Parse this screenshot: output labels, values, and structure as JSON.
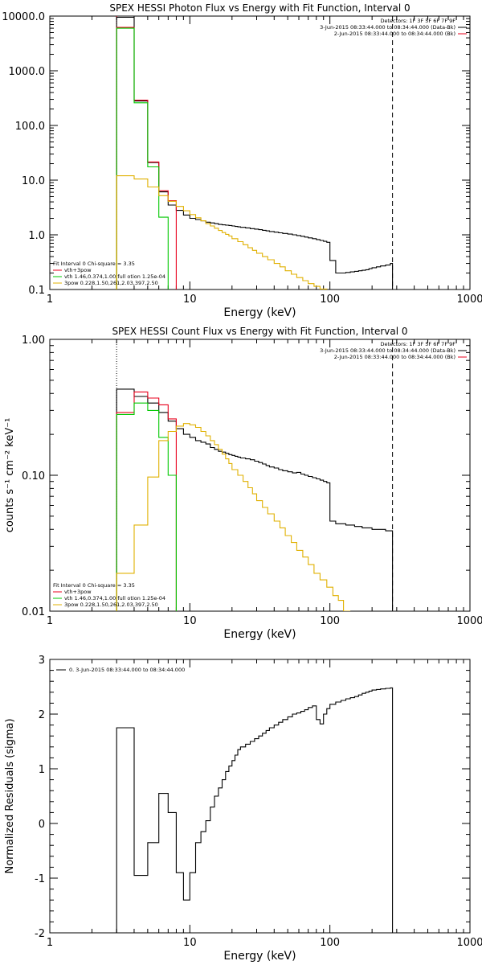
{
  "chart_data": [
    {
      "id": "photon",
      "type": "line",
      "title": "SPEX HESSI Photon Flux vs Energy with Fit Function, Interval 0",
      "xlabel": "Energy (keV)",
      "ylabel": "",
      "xscale": "log",
      "yscale": "log",
      "xlim": [
        1,
        1000
      ],
      "ylim": [
        0.1,
        10000
      ],
      "xticks": [
        1,
        10,
        100,
        1000
      ],
      "xtick_labels": [
        "1",
        "10",
        "100",
        "1000"
      ],
      "yticks": [
        0.1,
        1,
        10,
        100,
        1000,
        10000
      ],
      "ytick_labels": [
        "0.1",
        "1.0",
        "10.0",
        "100.0",
        "1000.0",
        "10000.0"
      ],
      "legend_tr": [
        {
          "text": "Detectors: 1F 3F 5F 6F 7F 9F",
          "color": ""
        },
        {
          "text": "3-Jun-2015 08:33:44.000 to 08:34:44.000 (Data-Bk)",
          "color": "#000000"
        },
        {
          "text": "2-Jun-2015 08:33:44.000 to 08:34:44.000 (Bk)",
          "color": "#e8001c"
        }
      ],
      "legend_bl": [
        {
          "text": "Fit Interval 0   Chi-square = 3.35",
          "color": ""
        },
        {
          "text": "vth+3pow",
          "color": "#e8001c"
        },
        {
          "text": "vth 1.46,0.374,1.00  full otion 1.25e-04",
          "color": "#00c800"
        },
        {
          "text": "3pow 0.228,1.50,261,2.03,397,2.50",
          "color": "#e0b000"
        }
      ],
      "vlines": [
        {
          "x": 3.0,
          "style": "dotted",
          "color": "#e8001c"
        },
        {
          "x": 280,
          "style": "dashed",
          "color": "#000000"
        }
      ],
      "series": [
        {
          "color": "#000000",
          "edges": [
            3,
            4,
            5,
            6,
            7,
            8,
            9,
            10,
            11,
            12,
            13,
            14,
            15,
            16,
            17,
            18,
            19,
            20,
            21,
            22,
            23,
            25,
            27,
            29,
            31,
            33,
            35,
            37,
            40,
            43,
            46,
            50,
            54,
            58,
            62,
            66,
            70,
            75,
            80,
            85,
            90,
            95,
            100,
            110,
            120,
            130,
            140,
            150,
            160,
            170,
            180,
            190,
            200,
            215,
            230,
            250,
            270,
            280
          ],
          "values": [
            9500,
            280,
            21,
            6.1,
            3.5,
            2.8,
            2.3,
            2.0,
            1.9,
            1.8,
            1.7,
            1.65,
            1.6,
            1.55,
            1.52,
            1.5,
            1.48,
            1.45,
            1.42,
            1.4,
            1.37,
            1.34,
            1.3,
            1.27,
            1.24,
            1.21,
            1.18,
            1.15,
            1.12,
            1.09,
            1.06,
            1.03,
            1.0,
            0.97,
            0.94,
            0.91,
            0.88,
            0.85,
            0.82,
            0.79,
            0.76,
            0.73,
            0.34,
            0.2,
            0.2,
            0.205,
            0.21,
            0.215,
            0.22,
            0.225,
            0.23,
            0.24,
            0.25,
            0.26,
            0.27,
            0.28,
            0.3
          ]
        },
        {
          "color": "#e8001c",
          "edges": [
            3,
            4,
            5,
            6,
            7,
            8
          ],
          "values": [
            6200,
            290,
            21.5,
            6.4,
            4.2
          ]
        },
        {
          "color": "#00c800",
          "edges": [
            3,
            4,
            5,
            6,
            7
          ],
          "values": [
            6000,
            260,
            17.5,
            2.1
          ]
        },
        {
          "color": "#e0b000",
          "edges": [
            3,
            4,
            5,
            6,
            7,
            8,
            9,
            10,
            11,
            12,
            13,
            14,
            15,
            16,
            17,
            18,
            19,
            20,
            22,
            24,
            26,
            28,
            30,
            33,
            36,
            40,
            44,
            48,
            53,
            58,
            64,
            70,
            77,
            85,
            95,
            100
          ],
          "values": [
            12,
            10.5,
            7.5,
            5.2,
            4.1,
            3.3,
            2.75,
            2.35,
            2.05,
            1.8,
            1.6,
            1.45,
            1.32,
            1.2,
            1.1,
            1.02,
            0.95,
            0.85,
            0.75,
            0.66,
            0.58,
            0.52,
            0.46,
            0.4,
            0.35,
            0.3,
            0.26,
            0.22,
            0.19,
            0.165,
            0.145,
            0.128,
            0.114,
            0.102,
            0.09
          ]
        }
      ]
    },
    {
      "id": "count",
      "type": "line",
      "title": "SPEX HESSI Count Flux vs Energy with Fit Function, Interval 0",
      "xlabel": "Energy (keV)",
      "ylabel": "counts s⁻¹ cm⁻² keV⁻¹",
      "xscale": "log",
      "yscale": "log",
      "xlim": [
        1,
        1000
      ],
      "ylim": [
        0.01,
        1
      ],
      "xticks": [
        1,
        10,
        100,
        1000
      ],
      "xtick_labels": [
        "1",
        "10",
        "100",
        "1000"
      ],
      "yticks": [
        0.01,
        0.1,
        1
      ],
      "ytick_labels": [
        "0.01",
        "0.10",
        "1.00"
      ],
      "legend_tr": [
        {
          "text": "Detectors: 1F 3F 5F 6F 7F 9F",
          "color": ""
        },
        {
          "text": "3-Jun-2015 08:33:44.000 to 08:34:44.000 (Data-Bk)",
          "color": "#000000"
        },
        {
          "text": "2-Jun-2015 08:33:44.000 to 08:34:44.000 (Bk)",
          "color": "#e8001c"
        }
      ],
      "legend_bl": [
        {
          "text": "Fit Interval 0   Chi-square = 3.35",
          "color": ""
        },
        {
          "text": "vth+3pow",
          "color": "#e8001c"
        },
        {
          "text": "vth 1.46,0.374,1.00  full otion 1.25e-04",
          "color": "#00c800"
        },
        {
          "text": "3pow 0.228,1.50,261,2.03,397,2.50",
          "color": "#e0b000"
        }
      ],
      "vlines": [
        {
          "x": 3.0,
          "style": "dotted",
          "color": "#000000"
        },
        {
          "x": 280,
          "style": "dashed",
          "color": "#000000"
        }
      ],
      "series": [
        {
          "color": "#000000",
          "edges": [
            3,
            4,
            5,
            6,
            7,
            8,
            9,
            10,
            11,
            12,
            13,
            14,
            15,
            16,
            17,
            18,
            19,
            20,
            21,
            22,
            23,
            25,
            27,
            29,
            31,
            33,
            35,
            37,
            40,
            43,
            46,
            50,
            54,
            58,
            62,
            66,
            70,
            75,
            80,
            85,
            90,
            95,
            100,
            110,
            120,
            130,
            140,
            150,
            160,
            170,
            180,
            190,
            200,
            215,
            230,
            250,
            270,
            280
          ],
          "values": [
            0.43,
            0.38,
            0.34,
            0.29,
            0.25,
            0.22,
            0.2,
            0.19,
            0.18,
            0.175,
            0.17,
            0.16,
            0.155,
            0.15,
            0.148,
            0.145,
            0.142,
            0.14,
            0.138,
            0.136,
            0.134,
            0.132,
            0.13,
            0.127,
            0.124,
            0.121,
            0.118,
            0.115,
            0.113,
            0.11,
            0.108,
            0.106,
            0.104,
            0.105,
            0.102,
            0.1,
            0.098,
            0.096,
            0.094,
            0.092,
            0.09,
            0.088,
            0.046,
            0.044,
            0.044,
            0.043,
            0.043,
            0.042,
            0.042,
            0.041,
            0.041,
            0.041,
            0.04,
            0.04,
            0.04,
            0.039,
            0.039
          ]
        },
        {
          "color": "#e8001c",
          "edges": [
            3,
            4,
            5,
            6,
            7,
            8
          ],
          "values": [
            0.29,
            0.41,
            0.37,
            0.33,
            0.26
          ]
        },
        {
          "color": "#00c800",
          "edges": [
            3,
            4,
            5,
            6,
            7,
            8
          ],
          "values": [
            0.28,
            0.34,
            0.3,
            0.19,
            0.1
          ]
        },
        {
          "color": "#e0b000",
          "edges": [
            3,
            4,
            5,
            6,
            7,
            8,
            9,
            10,
            11,
            12,
            13,
            14,
            15,
            16,
            17,
            18,
            19,
            20,
            22,
            24,
            26,
            28,
            30,
            33,
            36,
            40,
            44,
            48,
            53,
            58,
            64,
            70,
            77,
            85,
            95,
            105,
            115,
            125,
            140
          ],
          "values": [
            0.019,
            0.043,
            0.097,
            0.18,
            0.21,
            0.23,
            0.24,
            0.235,
            0.225,
            0.21,
            0.195,
            0.18,
            0.168,
            0.155,
            0.143,
            0.132,
            0.122,
            0.11,
            0.1,
            0.09,
            0.081,
            0.073,
            0.065,
            0.058,
            0.052,
            0.046,
            0.041,
            0.036,
            0.032,
            0.028,
            0.025,
            0.022,
            0.019,
            0.017,
            0.015,
            0.013,
            0.012,
            0.01
          ]
        }
      ]
    },
    {
      "id": "resid",
      "type": "line",
      "title": "",
      "xlabel": "Energy (keV)",
      "ylabel": "Normalized Residuals (sigma)",
      "xscale": "log",
      "yscale": "linear",
      "xlim": [
        1,
        1000
      ],
      "ylim": [
        -2,
        3
      ],
      "xticks": [
        1,
        10,
        100,
        1000
      ],
      "xtick_labels": [
        "1",
        "10",
        "100",
        "1000"
      ],
      "yticks": [
        -2,
        -1,
        0,
        1,
        2,
        3
      ],
      "ytick_labels": [
        "-2",
        "-1",
        "0",
        "1",
        "2",
        "3"
      ],
      "legend_tr": [],
      "legend_bl": [],
      "legend_tl": [
        {
          "text": "0. 3-Jun-2015 08:33:44.000 to 08:34:44.000",
          "color": "#000000"
        }
      ],
      "vlines": [],
      "series": [
        {
          "color": "#000000",
          "edges": [
            3,
            4,
            5,
            6,
            7,
            8,
            9,
            10,
            11,
            12,
            13,
            14,
            15,
            16,
            17,
            18,
            19,
            20,
            21,
            22,
            23,
            25,
            27,
            29,
            31,
            33,
            35,
            37,
            40,
            43,
            46,
            50,
            54,
            58,
            62,
            66,
            70,
            75,
            80,
            85,
            90,
            95,
            100,
            110,
            120,
            130,
            140,
            150,
            160,
            170,
            180,
            190,
            200,
            215,
            230,
            250,
            270,
            280
          ],
          "values": [
            1.75,
            -0.95,
            -0.35,
            0.55,
            0.2,
            -0.9,
            -1.4,
            -0.9,
            -0.35,
            -0.15,
            0.05,
            0.3,
            0.5,
            0.65,
            0.8,
            0.95,
            1.05,
            1.15,
            1.25,
            1.35,
            1.4,
            1.45,
            1.5,
            1.55,
            1.6,
            1.65,
            1.7,
            1.75,
            1.8,
            1.85,
            1.9,
            1.95,
            2.0,
            2.02,
            2.05,
            2.08,
            2.12,
            2.15,
            1.9,
            1.82,
            2.0,
            2.1,
            2.18,
            2.22,
            2.25,
            2.28,
            2.3,
            2.32,
            2.35,
            2.38,
            2.4,
            2.42,
            2.44,
            2.45,
            2.46,
            2.47,
            2.48
          ]
        }
      ]
    }
  ]
}
